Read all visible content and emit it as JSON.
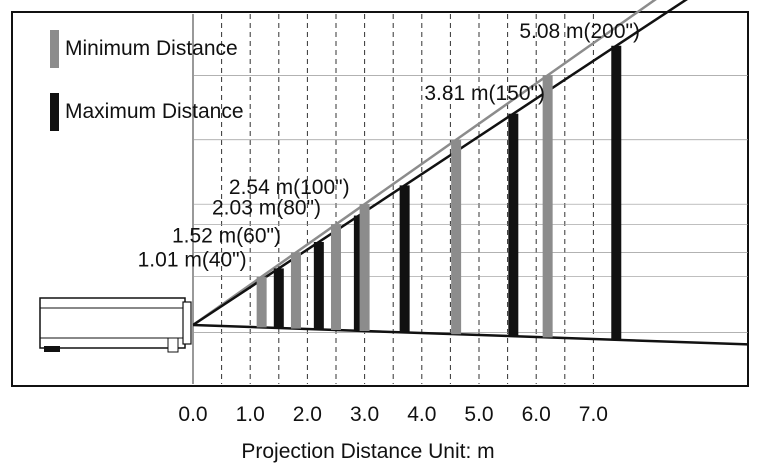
{
  "chart_data": {
    "type": "diagram",
    "xlabel": "Projection Distance Unit: m",
    "x_ticks": [
      "0.0",
      "1.0",
      "2.0",
      "3.0",
      "4.0",
      "5.0",
      "6.0",
      "7.0"
    ],
    "xlim": [
      0,
      7.5
    ],
    "legend": [
      {
        "name": "Minimum Distance",
        "color": "#8c8c8c"
      },
      {
        "name": "Maximum Distance",
        "color": "#111111"
      }
    ],
    "screen_sizes": [
      {
        "label": "1.01 m(40\")",
        "diagonal_m": 1.01,
        "min_distance_m": 1.2,
        "max_distance_m": 1.5
      },
      {
        "label": "1.52 m(60\")",
        "diagonal_m": 1.52,
        "min_distance_m": 1.8,
        "max_distance_m": 2.2
      },
      {
        "label": "2.03 m(80\")",
        "diagonal_m": 2.03,
        "min_distance_m": 2.5,
        "max_distance_m": 2.9
      },
      {
        "label": "2.54 m(100\")",
        "diagonal_m": 2.54,
        "min_distance_m": 3.0,
        "max_distance_m": 3.7
      },
      {
        "label": "3.81 m(150\")",
        "diagonal_m": 3.81,
        "min_distance_m": 4.6,
        "max_distance_m": 5.6
      },
      {
        "label": "5.08 m(200\")",
        "diagonal_m": 5.08,
        "min_distance_m": 6.2,
        "max_distance_m": 7.4
      }
    ]
  }
}
